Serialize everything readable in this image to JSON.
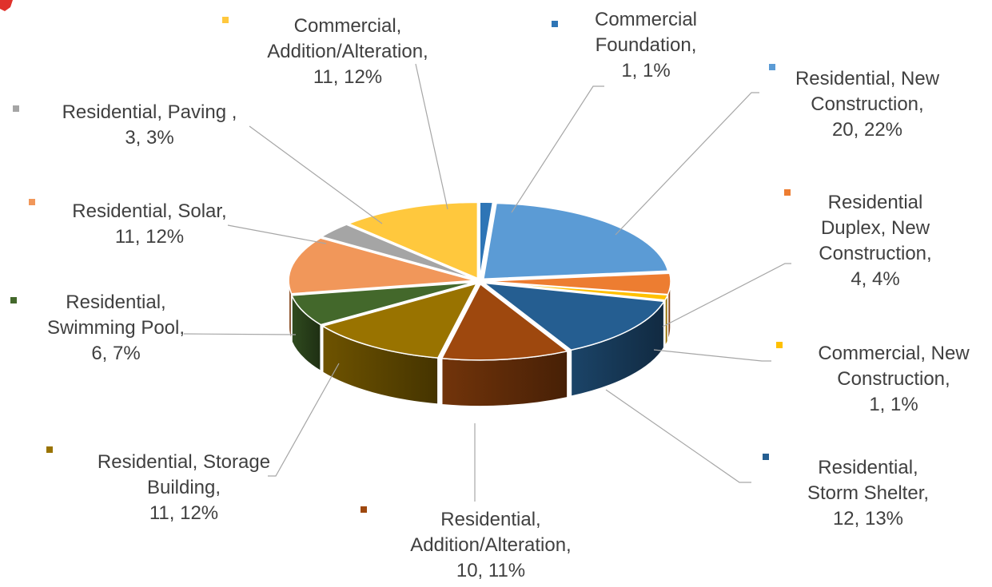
{
  "chart_data": {
    "type": "pie",
    "style": "3d-exploded",
    "start_angle_deg": 0,
    "direction": "clockwise",
    "slices": [
      {
        "label_lines": [
          "Commercial",
          "Foundation,",
          "1, 1%"
        ],
        "value": 1,
        "percent": "1%",
        "color": "#2e75b6"
      },
      {
        "label_lines": [
          "Residential, New",
          "Construction,",
          "20, 22%"
        ],
        "value": 20,
        "percent": "22%",
        "color": "#5b9bd5"
      },
      {
        "label_lines": [
          "Residential",
          "Duplex, New",
          "Construction,",
          "4, 4%"
        ],
        "value": 4,
        "percent": "4%",
        "color": "#ed7d31"
      },
      {
        "label_lines": [
          "Commercial, New",
          "Construction,",
          "1, 1%"
        ],
        "value": 1,
        "percent": "1%",
        "color": "#ffc000"
      },
      {
        "label_lines": [
          "Residential,",
          "Storm Shelter,",
          "12, 13%"
        ],
        "value": 12,
        "percent": "13%",
        "color": "#255e91"
      },
      {
        "label_lines": [
          "Residential,",
          "Addition/Alteration,",
          "10, 11%"
        ],
        "value": 10,
        "percent": "11%",
        "color": "#9e480e"
      },
      {
        "label_lines": [
          "Residential, Storage",
          "Building,",
          "11, 12%"
        ],
        "value": 11,
        "percent": "12%",
        "color": "#997300"
      },
      {
        "label_lines": [
          "Residential,",
          "Swimming Pool,",
          "6, 7%"
        ],
        "value": 6,
        "percent": "7%",
        "color": "#43682b"
      },
      {
        "label_lines": [
          "Residential, Solar,",
          "11, 12%"
        ],
        "value": 11,
        "percent": "12%",
        "color": "#f1975a"
      },
      {
        "label_lines": [
          "Residential, Paving ,",
          "3, 3%"
        ],
        "value": 3,
        "percent": "3%",
        "color": "#a5a5a5"
      },
      {
        "label_lines": [
          "Commercial,",
          "Addition/Alteration,",
          "11, 12%"
        ],
        "value": 11,
        "percent": "12%",
        "color": "#ffc83d"
      }
    ],
    "label_color": "#404040",
    "leader_line_color": "#a6a6a6"
  }
}
